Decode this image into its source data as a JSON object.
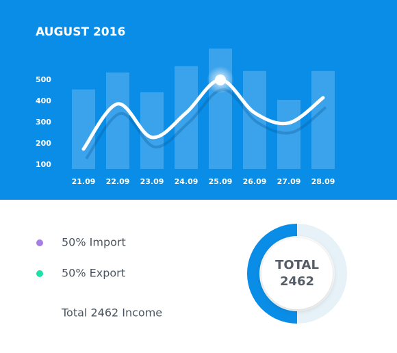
{
  "chart_data": [
    {
      "type": "combo",
      "title": "AUGUST 2016",
      "categories": [
        "21.09",
        "22.09",
        "23.09",
        "24.09",
        "25.09",
        "26.09",
        "27.09",
        "28.09"
      ],
      "series": [
        {
          "type": "bar",
          "color": "#ffffff",
          "values": [
            455,
            535,
            442,
            565,
            648,
            542,
            406,
            542
          ]
        },
        {
          "type": "line",
          "color": "#ffffff",
          "values": [
            174,
            387,
            229,
            345,
            500,
            345,
            297,
            416
          ]
        }
      ],
      "ylim": [
        80,
        680
      ],
      "yticks": [
        100,
        200,
        300,
        400,
        500
      ],
      "grid": false,
      "background": "#0a8de6"
    },
    {
      "type": "donut",
      "labels": [
        "50% Import",
        "50% Export"
      ],
      "values": [
        50,
        50
      ],
      "colors": [
        "#0a8de6",
        "#e6f2f7"
      ],
      "legend_colors": [
        "#a77ee6",
        "#1de0a6"
      ],
      "center_title": "TOTAL",
      "center_value": 2462,
      "caption": "Total 2462 Income"
    }
  ]
}
